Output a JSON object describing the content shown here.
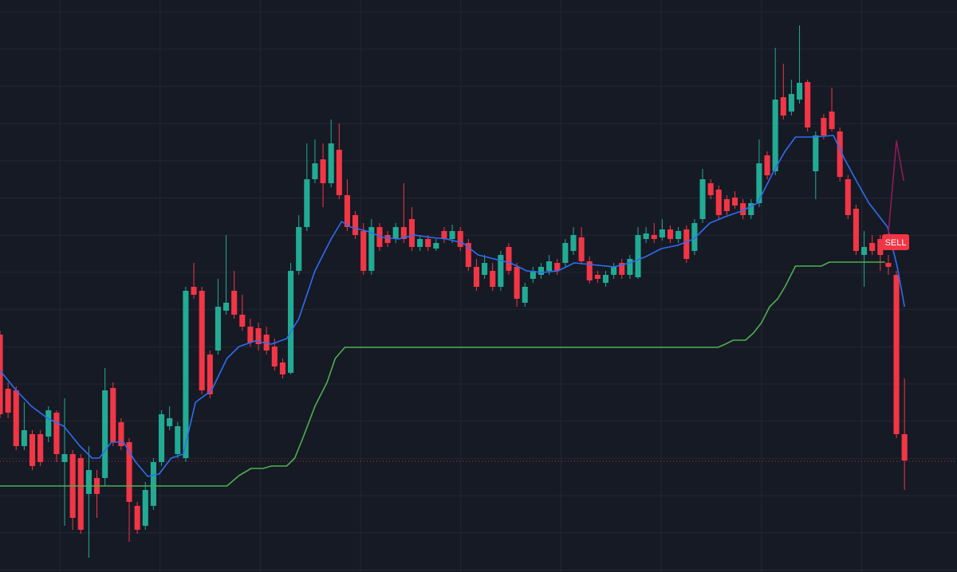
{
  "chart_data": {
    "type": "candlestick",
    "xlim": [
      0,
      118.5
    ],
    "ylim": [
      0,
      718
    ],
    "up_color": "#22ab94",
    "down_color": "#f23645",
    "open": [
      298,
      230,
      228,
      158,
      173,
      173,
      170,
      200,
      138,
      148,
      143,
      98,
      118,
      118,
      231,
      188,
      163,
      83,
      58,
      83,
      138,
      183,
      148,
      143,
      358,
      353,
      273,
      278,
      328,
      353,
      323,
      308,
      306,
      298,
      283,
      263,
      250,
      378,
      433,
      493,
      518,
      488,
      530,
      473,
      448,
      428,
      378,
      433,
      423,
      418,
      433,
      443,
      408,
      418,
      406,
      428,
      418,
      428,
      413,
      383,
      373,
      378,
      358,
      408,
      383,
      338,
      368,
      373,
      378,
      388,
      388,
      403,
      420,
      390,
      373,
      363,
      373,
      388,
      373,
      370,
      418,
      423,
      420,
      430,
      418,
      430,
      403,
      443,
      488,
      480,
      468,
      470,
      463,
      448,
      463,
      523,
      503,
      596,
      578,
      593,
      615,
      503,
      570,
      578,
      553,
      493,
      456,
      398,
      413,
      418,
      388,
      373,
      173
    ],
    "high": [
      303,
      238,
      233,
      213,
      178,
      178,
      208,
      203,
      218,
      153,
      148,
      158,
      128,
      256,
      238,
      193,
      168,
      88,
      113,
      143,
      203,
      208,
      188,
      358,
      388,
      358,
      278,
      368,
      423,
      378,
      348,
      318,
      313,
      308,
      293,
      268,
      388,
      448,
      538,
      543,
      538,
      568,
      563,
      493,
      453,
      438,
      443,
      438,
      428,
      438,
      488,
      458,
      423,
      423,
      418,
      433,
      436,
      433,
      418,
      393,
      398,
      388,
      403,
      413,
      388,
      363,
      383,
      388,
      398,
      393,
      418,
      433,
      433,
      396,
      378,
      378,
      388,
      393,
      398,
      433,
      433,
      438,
      443,
      435,
      433,
      435,
      443,
      506,
      493,
      485,
      473,
      478,
      468,
      468,
      543,
      528,
      658,
      638,
      618,
      686,
      618,
      553,
      575,
      608,
      558,
      498,
      461,
      428,
      423,
      423,
      398,
      378,
      243
    ],
    "low": [
      193,
      193,
      153,
      153,
      128,
      133,
      163,
      138,
      58,
      53,
      48,
      18,
      68,
      108,
      158,
      153,
      38,
      48,
      53,
      78,
      133,
      178,
      143,
      138,
      343,
      223,
      218,
      273,
      323,
      318,
      303,
      283,
      278,
      273,
      253,
      243,
      248,
      373,
      428,
      488,
      458,
      483,
      468,
      428,
      418,
      373,
      373,
      403,
      408,
      413,
      413,
      403,
      403,
      403,
      403,
      413,
      413,
      403,
      378,
      353,
      368,
      353,
      353,
      373,
      333,
      333,
      363,
      368,
      373,
      373,
      383,
      398,
      386,
      362,
      363,
      358,
      368,
      368,
      368,
      368,
      413,
      413,
      416,
      413,
      413,
      388,
      398,
      438,
      468,
      443,
      448,
      456,
      443,
      443,
      458,
      493,
      498,
      568,
      573,
      588,
      553,
      468,
      543,
      553,
      490,
      443,
      398,
      358,
      398,
      378,
      373,
      168,
      103
    ],
    "close": [
      198,
      200,
      158,
      178,
      133,
      138,
      203,
      148,
      148,
      68,
      53,
      128,
      98,
      228,
      163,
      158,
      88,
      53,
      103,
      138,
      198,
      193,
      183,
      353,
      348,
      228,
      223,
      333,
      338,
      323,
      308,
      288,
      286,
      278,
      258,
      248,
      378,
      433,
      493,
      513,
      488,
      538,
      473,
      433,
      423,
      378,
      433,
      408,
      413,
      433,
      418,
      408,
      418,
      408,
      413,
      418,
      428,
      408,
      383,
      358,
      388,
      358,
      398,
      378,
      343,
      358,
      378,
      383,
      390,
      378,
      413,
      423,
      390,
      366,
      368,
      373,
      383,
      373,
      393,
      423,
      425,
      418,
      430,
      418,
      428,
      393,
      438,
      493,
      473,
      448,
      453,
      460,
      448,
      463,
      513,
      498,
      593,
      573,
      600,
      614,
      558,
      548,
      548,
      556,
      496,
      448,
      403,
      408,
      403,
      398,
      383,
      173,
      140
    ],
    "lines": [
      {
        "color": "#2f6df2",
        "x": [
          0,
          2.0,
          3.9,
          5.9,
          7.9,
          9.9,
          11.4,
          12.3,
          13.8,
          15.3,
          16.8,
          18.3,
          19.7,
          21.2,
          22.7,
          24.2,
          26.2,
          28.1,
          29.6,
          31.6,
          33.6,
          35.5,
          37.0,
          39.0,
          41.0,
          42.3,
          43.4,
          45.4,
          47.4,
          49.4,
          51.3,
          53.3,
          55.3,
          57.3,
          59.2,
          61.2,
          63.2,
          65.2,
          67.1,
          69.1,
          71.1,
          73.1,
          76.0,
          78.0,
          80.0,
          81.9,
          83.9,
          85.9,
          87.9,
          89.8,
          91.8,
          93.8,
          95.8,
          97.2,
          98.5,
          100.7,
          103.2,
          104.6,
          106.1,
          107.6,
          109.9,
          111.1,
          112.0
        ],
        "values": [
          253,
          228,
          208,
          193,
          183,
          158,
          143,
          143,
          163,
          163,
          138,
          120,
          123,
          143,
          148,
          213,
          228,
          268,
          283,
          290,
          286,
          293,
          318,
          378,
          418,
          440,
          433,
          428,
          420,
          418,
          423,
          420,
          418,
          413,
          398,
          393,
          388,
          378,
          376,
          378,
          388,
          386,
          383,
          388,
          396,
          406,
          410,
          418,
          438,
          446,
          453,
          463,
          503,
          528,
          546,
          546,
          548,
          518,
          490,
          463,
          433,
          383,
          333
        ]
      },
      {
        "color": "#4caf50",
        "x": [
          0,
          28.1,
          29.6,
          31.1,
          32.6,
          33.6,
          35.5,
          36.5,
          37.5,
          39.0,
          40.5,
          41.5,
          42.7,
          88.9,
          89.8,
          90.8,
          92.3,
          93.3,
          94.3,
          95.3,
          96.3,
          97.2,
          98.5,
          101.7,
          102.7,
          109.6
        ],
        "values": [
          108,
          108,
          121,
          130,
          130,
          133,
          133,
          143,
          168,
          208,
          238,
          268,
          282,
          282,
          286,
          291,
          291,
          300,
          313,
          333,
          343,
          358,
          384,
          384,
          389,
          389
        ]
      },
      {
        "color": "#8e1a5a",
        "x": [
          109.9,
          111.0,
          111.9
        ],
        "values": [
          413,
          541,
          491
        ]
      }
    ],
    "price_line": {
      "value": 139,
      "color": "#f23645"
    },
    "signal": {
      "label": "SELL",
      "x": 110.9,
      "y": 414,
      "color": "#f23645"
    }
  }
}
